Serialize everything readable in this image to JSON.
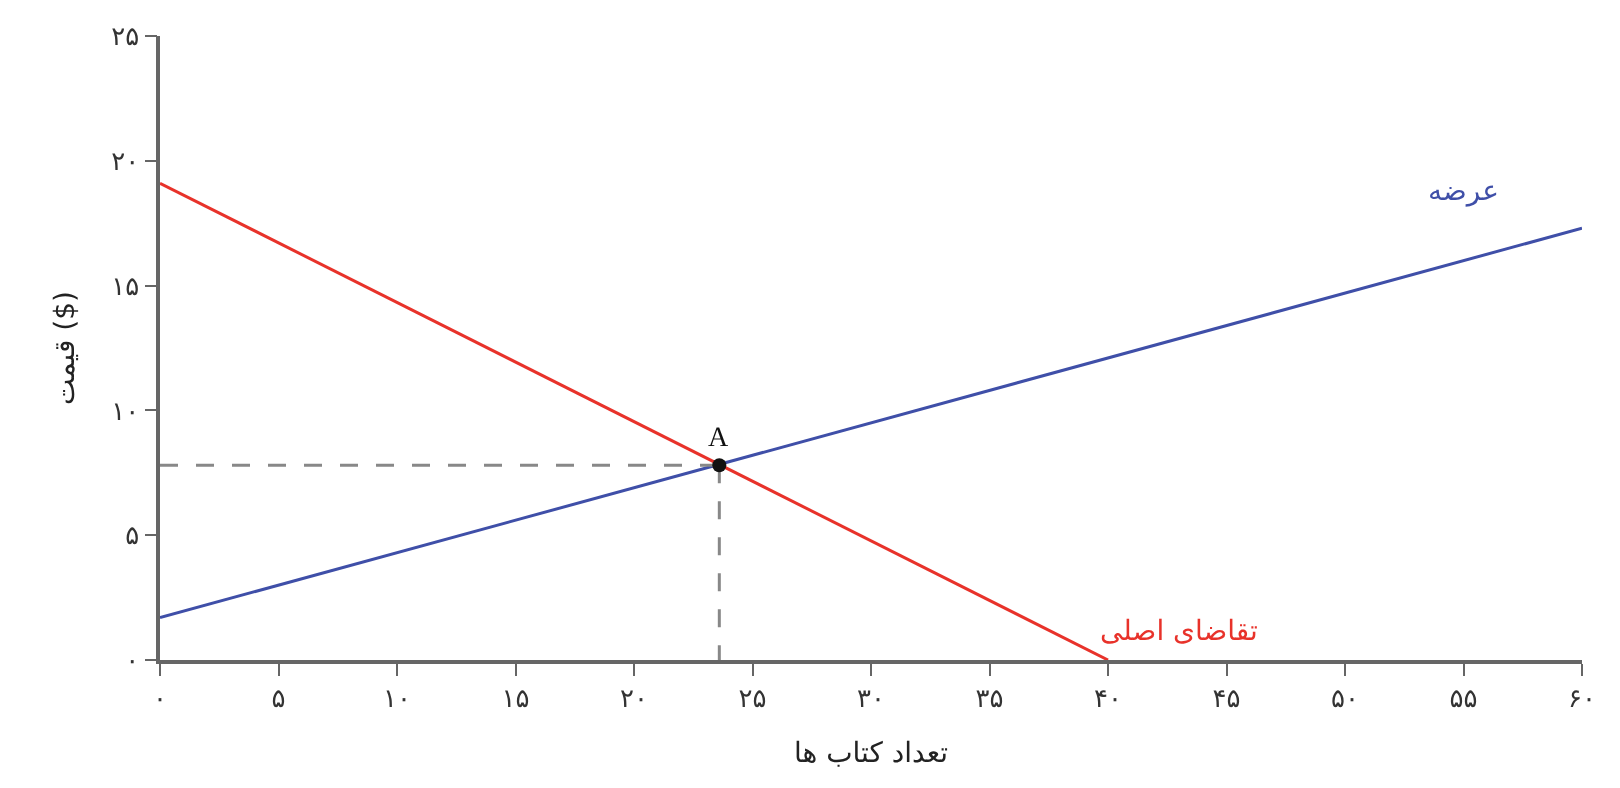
{
  "chart_data": {
    "type": "line",
    "xlabel": "تعداد کتاب ها",
    "ylabel": "قیمت ($)",
    "xlim": [
      0,
      60
    ],
    "ylim": [
      0,
      25
    ],
    "xticks": [
      {
        "value": 0,
        "label": "۰"
      },
      {
        "value": 5,
        "label": "۵"
      },
      {
        "value": 10,
        "label": "۱۰"
      },
      {
        "value": 15,
        "label": "۱۵"
      },
      {
        "value": 20,
        "label": "۲۰"
      },
      {
        "value": 25,
        "label": "۲۵"
      },
      {
        "value": 30,
        "label": "۳۰"
      },
      {
        "value": 35,
        "label": "۳۵"
      },
      {
        "value": 40,
        "label": "۴۰"
      },
      {
        "value": 45,
        "label": "۴۵"
      },
      {
        "value": 50,
        "label": "۵۰"
      },
      {
        "value": 55,
        "label": "۵۵"
      },
      {
        "value": 60,
        "label": "۶۰"
      }
    ],
    "yticks": [
      {
        "value": 0,
        "label": "۰"
      },
      {
        "value": 5,
        "label": "۵"
      },
      {
        "value": 10,
        "label": "۱۰"
      },
      {
        "value": 15,
        "label": "۱۵"
      },
      {
        "value": 20,
        "label": "۲۰"
      },
      {
        "value": 25,
        "label": "۲۵"
      }
    ],
    "legend": false,
    "series": [
      {
        "name": "عرضه",
        "color": "#3f4fa8",
        "x": [
          0,
          60
        ],
        "values": [
          1.7,
          17.3
        ]
      },
      {
        "name": "تقاضای اصلی",
        "color": "#e8322a",
        "x": [
          0,
          40
        ],
        "values": [
          19.1,
          0
        ]
      },
      {
        "color": "#888888",
        "line_style": "dashed",
        "x": [
          0,
          23.6
        ],
        "values": [
          7.8,
          7.8
        ]
      },
      {
        "color": "#888888",
        "line_style": "dashed",
        "x": [
          23.6,
          23.6
        ],
        "values": [
          7.8,
          0
        ]
      },
      {
        "type": "scatter",
        "marker": "circle",
        "color": "#111111",
        "x": [
          23.6
        ],
        "values": [
          7.8
        ]
      }
    ],
    "annotations": [
      {
        "text": "A",
        "x": 23.6,
        "y": 7.8
      }
    ]
  }
}
